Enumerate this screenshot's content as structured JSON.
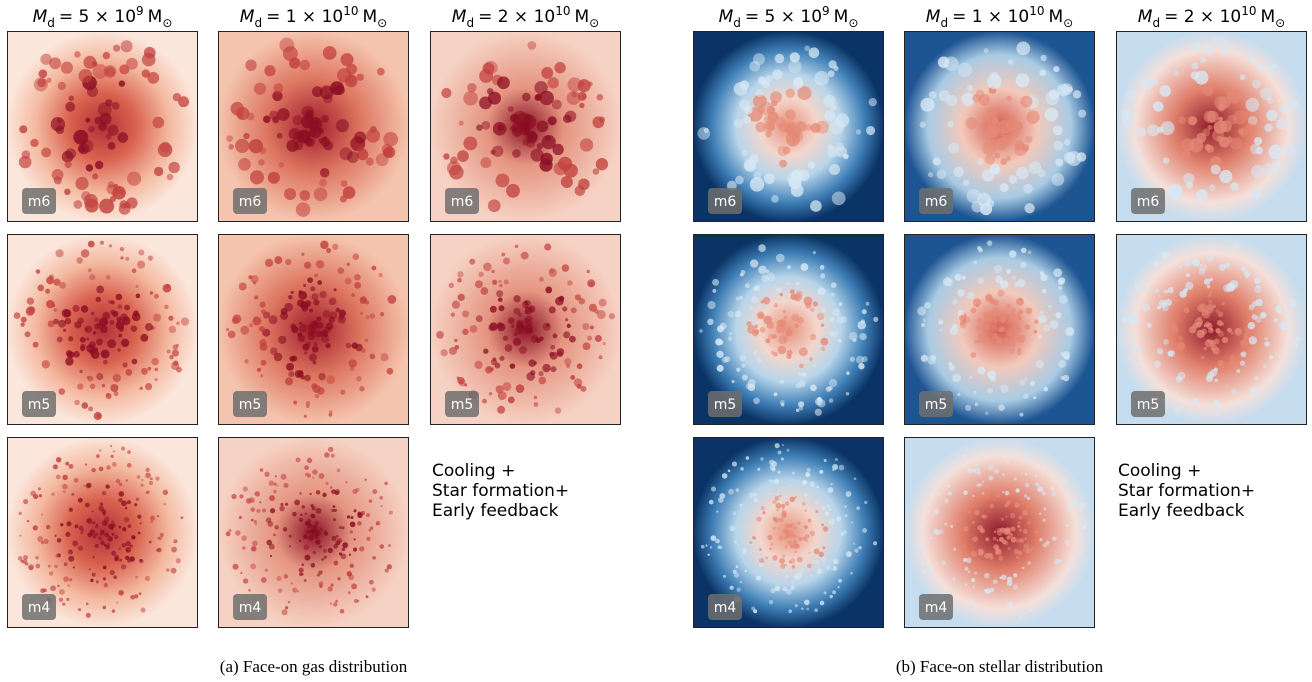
{
  "panels": [
    {
      "caption": "(a) Face-on gas distribution",
      "columns": [
        {
          "symbol": "M",
          "sub": "d",
          "mantissa": "= 5 × 10",
          "exp": "9",
          "unit": "M",
          "unit_sub": "⊙"
        },
        {
          "symbol": "M",
          "sub": "d",
          "mantissa": "= 1 × 10",
          "exp": "10",
          "unit": "M",
          "unit_sub": "⊙"
        },
        {
          "symbol": "M",
          "sub": "d",
          "mantissa": "= 2 × 10",
          "exp": "10",
          "unit": "M",
          "unit_sub": "⊙"
        }
      ],
      "cells": [
        [
          "m6",
          "m6",
          "m6"
        ],
        [
          "m5",
          "m5",
          "m5"
        ],
        [
          "m4",
          "m4",
          null
        ]
      ],
      "note": [
        "Cooling +",
        "Star formation+",
        "Early feedback"
      ]
    },
    {
      "caption": "(b) Face-on stellar distribution",
      "columns": [
        {
          "symbol": "M",
          "sub": "d",
          "mantissa": "= 5 × 10",
          "exp": "9",
          "unit": "M",
          "unit_sub": "⊙"
        },
        {
          "symbol": "M",
          "sub": "d",
          "mantissa": "= 1 × 10",
          "exp": "10",
          "unit": "M",
          "unit_sub": "⊙"
        },
        {
          "symbol": "M",
          "sub": "d",
          "mantissa": "= 2 × 10",
          "exp": "10",
          "unit": "M",
          "unit_sub": "⊙"
        }
      ],
      "cells": [
        [
          "m6",
          "m6",
          "m6"
        ],
        [
          "m5",
          "m5",
          "m5"
        ],
        [
          "m4",
          "m4",
          null
        ]
      ],
      "note": [
        "Cooling +",
        "Star formation+",
        "Early feedback"
      ]
    }
  ]
}
